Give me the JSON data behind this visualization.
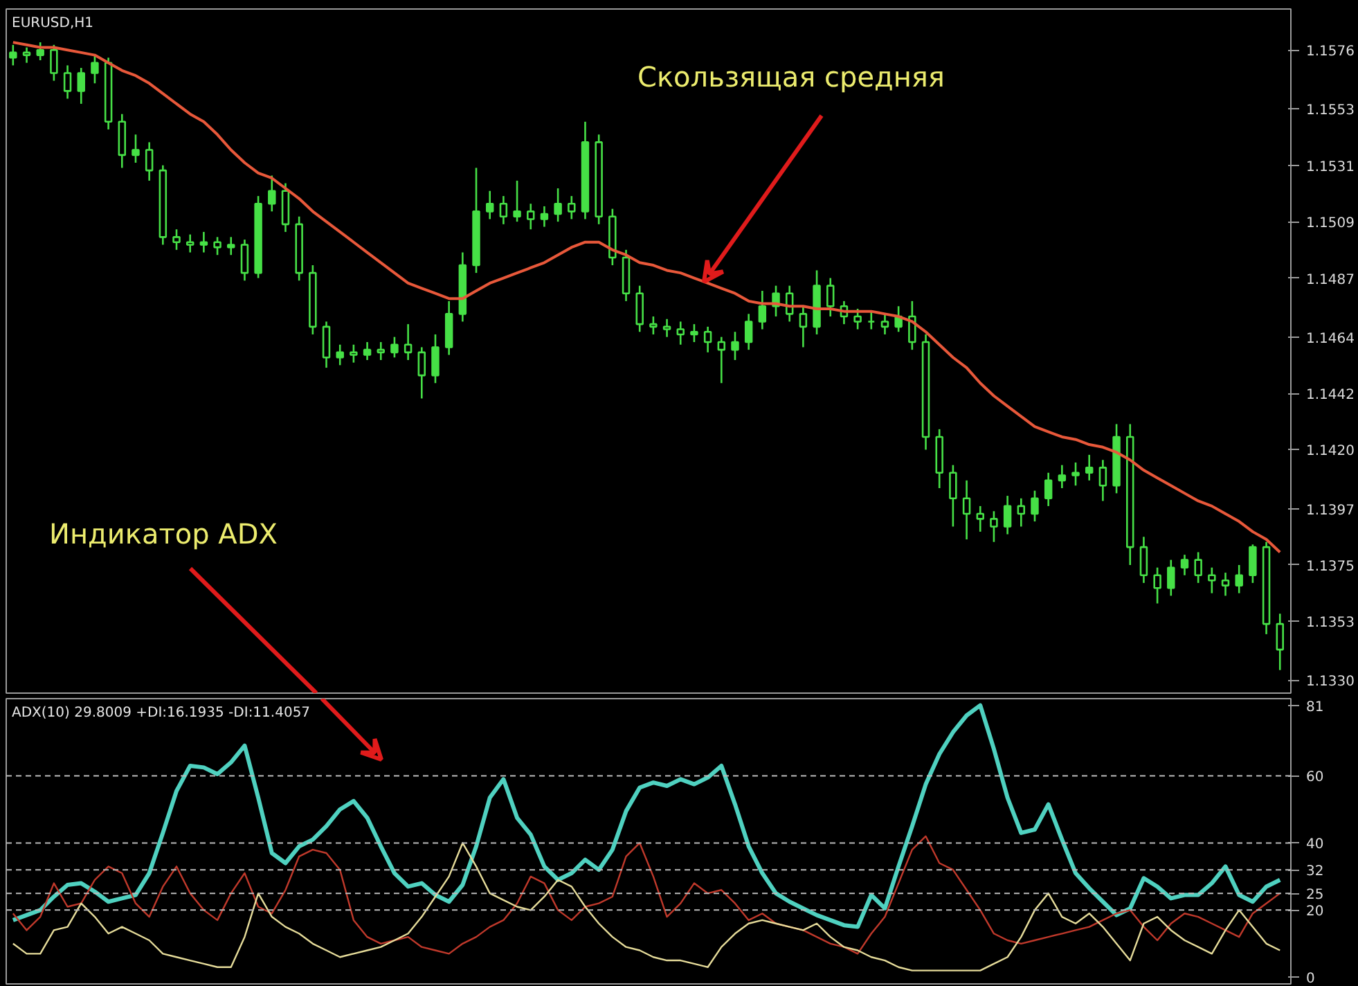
{
  "chart_data": [
    {
      "type": "candlestick",
      "title": "EURUSD,H1",
      "annotations": [
        "Скользящая средняя",
        "Индикатор ADX"
      ],
      "categories": [
        null,
        null,
        null,
        null,
        null,
        null,
        null,
        null,
        null,
        null,
        null,
        null,
        null,
        null,
        null,
        null,
        null,
        null,
        null,
        null,
        null,
        null,
        null,
        null,
        null,
        null,
        null,
        null,
        null,
        null,
        null,
        null,
        null,
        null,
        null,
        null,
        null,
        null,
        null,
        null,
        null,
        null,
        null,
        null,
        null,
        null,
        null,
        null,
        null,
        null,
        null,
        null,
        null,
        null,
        null,
        null,
        null,
        null,
        null,
        null,
        null,
        null,
        null,
        null,
        null,
        null,
        null,
        null,
        null,
        null,
        null,
        null,
        null,
        null,
        null,
        null,
        null,
        null,
        null,
        null,
        null,
        null,
        null,
        null,
        null,
        null,
        null,
        null,
        null,
        null,
        null,
        null,
        null,
        null
      ],
      "color": "#46e046",
      "ohlc": [
        [
          1.1573,
          1.1578,
          1.157,
          1.1575
        ],
        [
          1.1575,
          1.1577,
          1.1571,
          1.1574
        ],
        [
          1.1574,
          1.1579,
          1.1572,
          1.1576
        ],
        [
          1.1576,
          1.1578,
          1.1564,
          1.1567
        ],
        [
          1.1567,
          1.157,
          1.1557,
          1.156
        ],
        [
          1.156,
          1.1569,
          1.1555,
          1.1567
        ],
        [
          1.1567,
          1.1574,
          1.1563,
          1.1571
        ],
        [
          1.1571,
          1.1573,
          1.1545,
          1.1548
        ],
        [
          1.1548,
          1.1551,
          1.153,
          1.1535
        ],
        [
          1.1535,
          1.1543,
          1.1532,
          1.1537
        ],
        [
          1.1537,
          1.154,
          1.1525,
          1.1529
        ],
        [
          1.1529,
          1.1531,
          1.15,
          1.1503
        ],
        [
          1.1503,
          1.1506,
          1.1498,
          1.1501
        ],
        [
          1.1501,
          1.1504,
          1.1497,
          1.15
        ],
        [
          1.15,
          1.1505,
          1.1497,
          1.1501
        ],
        [
          1.1501,
          1.1503,
          1.1496,
          1.1499
        ],
        [
          1.1499,
          1.1503,
          1.1496,
          1.15
        ],
        [
          1.15,
          1.1502,
          1.1486,
          1.1489
        ],
        [
          1.1489,
          1.1519,
          1.1487,
          1.1516
        ],
        [
          1.1516,
          1.1527,
          1.1513,
          1.1521
        ],
        [
          1.1521,
          1.1524,
          1.1505,
          1.1508
        ],
        [
          1.1508,
          1.1511,
          1.1486,
          1.1489
        ],
        [
          1.1489,
          1.1492,
          1.1465,
          1.1468
        ],
        [
          1.1468,
          1.147,
          1.1452,
          1.1456
        ],
        [
          1.1456,
          1.1461,
          1.1453,
          1.1458
        ],
        [
          1.1458,
          1.1461,
          1.1454,
          1.1457
        ],
        [
          1.1457,
          1.1462,
          1.1455,
          1.1459
        ],
        [
          1.1459,
          1.1462,
          1.1455,
          1.1458
        ],
        [
          1.1458,
          1.1464,
          1.1456,
          1.1461
        ],
        [
          1.1461,
          1.1469,
          1.1455,
          1.1458
        ],
        [
          1.1458,
          1.146,
          1.144,
          1.1449
        ],
        [
          1.1449,
          1.1465,
          1.1446,
          1.146
        ],
        [
          1.146,
          1.1478,
          1.1457,
          1.1473
        ],
        [
          1.1473,
          1.1497,
          1.147,
          1.1492
        ],
        [
          1.1492,
          1.153,
          1.1489,
          1.1513
        ],
        [
          1.1513,
          1.1521,
          1.151,
          1.1516
        ],
        [
          1.1516,
          1.1519,
          1.1508,
          1.1511
        ],
        [
          1.1511,
          1.1525,
          1.1509,
          1.1513
        ],
        [
          1.1513,
          1.1516,
          1.1506,
          1.151
        ],
        [
          1.151,
          1.1515,
          1.1507,
          1.1512
        ],
        [
          1.1512,
          1.1522,
          1.1509,
          1.1516
        ],
        [
          1.1516,
          1.1519,
          1.151,
          1.1513
        ],
        [
          1.1513,
          1.1548,
          1.151,
          1.154
        ],
        [
          1.154,
          1.1543,
          1.1508,
          1.1511
        ],
        [
          1.1511,
          1.1514,
          1.1492,
          1.1495
        ],
        [
          1.1495,
          1.1498,
          1.1478,
          1.1481
        ],
        [
          1.1481,
          1.1484,
          1.1466,
          1.1469
        ],
        [
          1.1469,
          1.1472,
          1.1465,
          1.1468
        ],
        [
          1.1468,
          1.1471,
          1.1464,
          1.1467
        ],
        [
          1.1467,
          1.147,
          1.1461,
          1.1465
        ],
        [
          1.1465,
          1.1469,
          1.1462,
          1.1466
        ],
        [
          1.1466,
          1.1468,
          1.1458,
          1.1462
        ],
        [
          1.1462,
          1.1464,
          1.1446,
          1.1459
        ],
        [
          1.1459,
          1.1466,
          1.1455,
          1.1462
        ],
        [
          1.1462,
          1.1473,
          1.1459,
          1.147
        ],
        [
          1.147,
          1.1482,
          1.1467,
          1.1476
        ],
        [
          1.1476,
          1.1484,
          1.1472,
          1.1481
        ],
        [
          1.1481,
          1.1484,
          1.147,
          1.1473
        ],
        [
          1.1473,
          1.1476,
          1.146,
          1.1468
        ],
        [
          1.1468,
          1.149,
          1.1465,
          1.1484
        ],
        [
          1.1484,
          1.1487,
          1.1472,
          1.1476
        ],
        [
          1.1476,
          1.1478,
          1.1469,
          1.1472
        ],
        [
          1.1472,
          1.1475,
          1.1467,
          1.147
        ],
        [
          1.147,
          1.1474,
          1.1467,
          1.147
        ],
        [
          1.147,
          1.1473,
          1.1465,
          1.1468
        ],
        [
          1.1468,
          1.1476,
          1.1466,
          1.1472
        ],
        [
          1.1472,
          1.1478,
          1.1459,
          1.1462
        ],
        [
          1.1462,
          1.1465,
          1.142,
          1.1425
        ],
        [
          1.1425,
          1.1428,
          1.1405,
          1.1411
        ],
        [
          1.1411,
          1.1414,
          1.139,
          1.1401
        ],
        [
          1.1401,
          1.1408,
          1.1385,
          1.1395
        ],
        [
          1.1395,
          1.1398,
          1.1388,
          1.1393
        ],
        [
          1.1393,
          1.1396,
          1.1384,
          1.139
        ],
        [
          1.139,
          1.1402,
          1.1387,
          1.1398
        ],
        [
          1.1398,
          1.1401,
          1.139,
          1.1395
        ],
        [
          1.1395,
          1.1404,
          1.1392,
          1.1401
        ],
        [
          1.1401,
          1.1411,
          1.1398,
          1.1408
        ],
        [
          1.1408,
          1.1414,
          1.1405,
          1.141
        ],
        [
          1.141,
          1.1415,
          1.1406,
          1.1411
        ],
        [
          1.1411,
          1.1418,
          1.1408,
          1.1413
        ],
        [
          1.1413,
          1.1416,
          1.14,
          1.1406
        ],
        [
          1.1406,
          1.143,
          1.1403,
          1.1425
        ],
        [
          1.1425,
          1.143,
          1.1375,
          1.1382
        ],
        [
          1.1382,
          1.1386,
          1.1368,
          1.1371
        ],
        [
          1.1371,
          1.1374,
          1.136,
          1.1366
        ],
        [
          1.1366,
          1.1377,
          1.1363,
          1.1374
        ],
        [
          1.1374,
          1.1379,
          1.1371,
          1.1377
        ],
        [
          1.1377,
          1.138,
          1.1368,
          1.1371
        ],
        [
          1.1371,
          1.1374,
          1.1364,
          1.1369
        ],
        [
          1.1369,
          1.1372,
          1.1363,
          1.1367
        ],
        [
          1.1367,
          1.1375,
          1.1364,
          1.1371
        ],
        [
          1.1371,
          1.1383,
          1.1368,
          1.1382
        ],
        [
          1.1382,
          1.1384,
          1.1348,
          1.1352
        ],
        [
          1.1352,
          1.1356,
          1.1334,
          1.1342
        ]
      ],
      "series": [
        {
          "type": "line",
          "color": "#e8583a",
          "values": [
            1.1579,
            1.1578,
            1.1577,
            1.1577,
            1.1576,
            1.1575,
            1.1574,
            1.1571,
            1.1568,
            1.1566,
            1.1563,
            1.1559,
            1.1555,
            1.1551,
            1.1548,
            1.1543,
            1.1537,
            1.1532,
            1.1528,
            1.1526,
            1.1522,
            1.1518,
            1.1513,
            1.1509,
            1.1505,
            1.1501,
            1.1497,
            1.1493,
            1.1489,
            1.1485,
            1.1483,
            1.1481,
            1.1479,
            1.1479,
            1.1482,
            1.1485,
            1.1487,
            1.1489,
            1.1491,
            1.1493,
            1.1496,
            1.1499,
            1.1501,
            1.1501,
            1.1498,
            1.1496,
            1.1493,
            1.1492,
            1.149,
            1.1489,
            1.1487,
            1.1485,
            1.1483,
            1.1481,
            1.1478,
            1.1477,
            1.1477,
            1.1476,
            1.1476,
            1.1475,
            1.1475,
            1.1474,
            1.1474,
            1.1474,
            1.1473,
            1.1472,
            1.147,
            1.1466,
            1.1461,
            1.1456,
            1.1452,
            1.1446,
            1.1441,
            1.1437,
            1.1433,
            1.1429,
            1.1427,
            1.1425,
            1.1424,
            1.1422,
            1.1421,
            1.1419,
            1.1416,
            1.1412,
            1.1409,
            1.1406,
            1.1403,
            1.14,
            1.1398,
            1.1395,
            1.1392,
            1.1388,
            1.1385,
            1.138
          ]
        }
      ],
      "ylim": [
        1.1325,
        1.1592
      ],
      "yticks": [
        1.1576,
        1.1553,
        1.1531,
        1.1509,
        1.1487,
        1.1464,
        1.1442,
        {
          "value": 1.142,
          "label": "1.1420"
        },
        1.1397,
        1.1375,
        1.1353,
        {
          "value": 1.133,
          "label": "1.1330"
        }
      ],
      "tick_labels": "y",
      "grid": false
    },
    {
      "type": "line",
      "title": "ADX(10) 29.8009 +DI:16.1935 -DI:11.4057",
      "categories": [
        null,
        null,
        null,
        null,
        null,
        null,
        null,
        null,
        null,
        null,
        null,
        null,
        null,
        null,
        null,
        null,
        null,
        null,
        null,
        null,
        null,
        null,
        null,
        null,
        null,
        null,
        null,
        null,
        null,
        null,
        null,
        null,
        null,
        null,
        null,
        null,
        null,
        null,
        null,
        null,
        null,
        null,
        null,
        null,
        null,
        null,
        null,
        null,
        null,
        null,
        null,
        null,
        null,
        null,
        null,
        null,
        null,
        null,
        null,
        null,
        null,
        null,
        null,
        null,
        null,
        null,
        null,
        null,
        null,
        null,
        null,
        null,
        null,
        null,
        null,
        null,
        null,
        null,
        null,
        null,
        null,
        null,
        null,
        null,
        null,
        null,
        null,
        null,
        null,
        null,
        null,
        null,
        null,
        null
      ],
      "series": [
        {
          "color": "#4fd1c0",
          "values": [
            17,
            18.5,
            20,
            24,
            27.5,
            28,
            25.5,
            22.5,
            23.5,
            24.5,
            31,
            43,
            55.5,
            63,
            62.5,
            60.5,
            64,
            69,
            53.5,
            37,
            34,
            39,
            41,
            45,
            50,
            52.5,
            47.5,
            39,
            31,
            27,
            28,
            24.5,
            22.5,
            27.5,
            39,
            53.5,
            59,
            47.5,
            42.5,
            33,
            29,
            31,
            35,
            32,
            38,
            49.5,
            56.5,
            58,
            57,
            59,
            57.5,
            59.5,
            63,
            51.5,
            39,
            31,
            25,
            22.5,
            20.5,
            18.5,
            17,
            15.5,
            15,
            24.5,
            20.5,
            33,
            45,
            57.5,
            66.5,
            73,
            78,
            81,
            68,
            53.5,
            43,
            44,
            51.5,
            41,
            31,
            26.5,
            22.5,
            18.5,
            20.5,
            29.5,
            27,
            23.5,
            24.5,
            24.5,
            28,
            33,
            24.5,
            22.5,
            27,
            29
          ]
        },
        {
          "color": "#c0392b",
          "values": [
            19,
            14,
            18,
            28,
            21,
            22,
            29,
            33,
            31,
            22,
            18,
            27,
            33,
            25,
            20,
            17,
            25,
            31,
            21,
            19,
            26,
            36,
            38,
            37,
            32,
            17,
            12,
            10,
            11,
            12,
            9,
            8,
            7,
            10,
            12,
            15,
            17,
            22,
            30,
            28,
            20,
            17,
            21,
            22,
            24,
            36,
            40,
            30,
            18,
            22,
            28,
            25,
            26,
            22,
            17,
            19,
            16,
            15,
            14,
            12,
            10,
            9,
            7,
            13,
            18,
            28,
            38,
            42,
            34,
            32,
            26,
            20,
            13,
            11,
            10,
            11,
            12,
            13,
            14,
            15,
            17,
            19,
            20,
            15,
            11,
            16,
            19,
            18,
            16,
            14,
            12,
            19,
            22,
            25
          ]
        },
        {
          "color": "#e6dc9a",
          "values": [
            10,
            7,
            7,
            14,
            15,
            22,
            18,
            13,
            15,
            13,
            11,
            7,
            6,
            5,
            4,
            3,
            3,
            12,
            25,
            18,
            15,
            13,
            10,
            8,
            6,
            7,
            8,
            9,
            11,
            13,
            18,
            24,
            30,
            40,
            33,
            25,
            23,
            21,
            20,
            24,
            29,
            27,
            21,
            16,
            12,
            9,
            8,
            6,
            5,
            5,
            4,
            3,
            9,
            13,
            16,
            17,
            16,
            15,
            14,
            16,
            12,
            9,
            8,
            6,
            5,
            3,
            2,
            2,
            2,
            2,
            2,
            2,
            4,
            6,
            12,
            20,
            25,
            18,
            16,
            19,
            15,
            10,
            5,
            16,
            18,
            14,
            11,
            9,
            7,
            14,
            20,
            15,
            10,
            8
          ]
        }
      ],
      "ylim": [
        -2,
        83
      ],
      "yticks": [
        0,
        20,
        25,
        32,
        40,
        60,
        81
      ],
      "ref_lines": [
        {
          "axis": "y",
          "value": 60,
          "line_style": "dashed",
          "color": "#bbbbbb"
        },
        {
          "axis": "y",
          "value": 40,
          "line_style": "dashed",
          "color": "#bbbbbb"
        },
        {
          "axis": "y",
          "value": 32,
          "line_style": "dashed",
          "color": "#bbbbbb"
        },
        {
          "axis": "y",
          "value": 25,
          "line_style": "dashed",
          "color": "#bbbbbb"
        },
        {
          "axis": "y",
          "value": 20,
          "line_style": "dashed",
          "color": "#bbbbbb"
        }
      ],
      "tick_labels": "y",
      "grid": false
    }
  ]
}
